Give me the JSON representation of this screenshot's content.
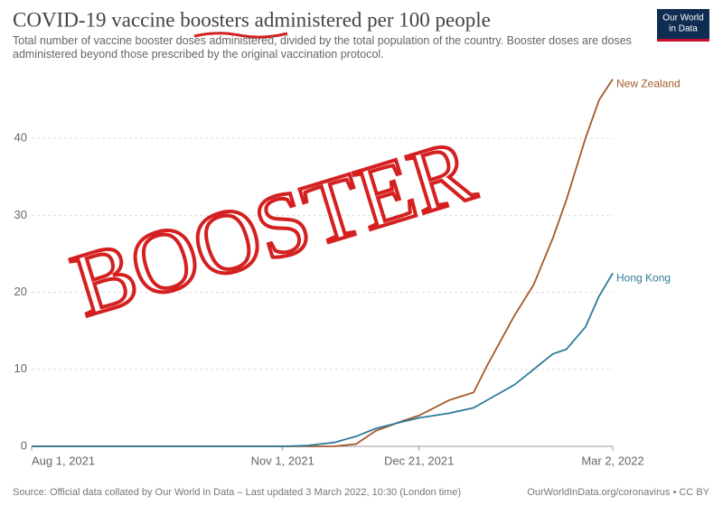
{
  "chart_data": {
    "type": "line",
    "title": "COVID-19 vaccine boosters administered per 100 people",
    "subtitle": "Total number of vaccine booster doses administered, divided by the total population of the country. Booster doses are doses administered beyond those prescribed by the original vaccination protocol.",
    "logo": [
      "Our World",
      "in Data"
    ],
    "annotation": "BOOSTER",
    "source": "Source: Official data collated by Our World in Data – Last updated 3 March 2022, 10:30 (London time)",
    "credit": "OurWorldInData.org/coronavirus • CC BY",
    "x": [
      "2021-08-01",
      "2021-09-01",
      "2021-10-01",
      "2021-11-01",
      "2021-11-10",
      "2021-11-20",
      "2021-11-28",
      "2021-12-05",
      "2021-12-15",
      "2021-12-21",
      "2022-01-01",
      "2022-01-10",
      "2022-01-15",
      "2022-01-25",
      "2022-02-01",
      "2022-02-08",
      "2022-02-13",
      "2022-02-20",
      "2022-02-25",
      "2022-03-02"
    ],
    "series": [
      {
        "name": "New Zealand",
        "color": "#a4592a",
        "values": [
          0,
          0,
          0,
          0,
          0,
          0,
          0.3,
          2.0,
          3.3,
          4.0,
          6.0,
          7.0,
          10.5,
          17,
          21,
          27,
          32,
          40,
          45,
          47.7
        ]
      },
      {
        "name": "Hong Kong",
        "color": "#2c7b9a",
        "values": [
          0,
          0,
          0,
          0,
          0.1,
          0.5,
          1.3,
          2.3,
          3.2,
          3.7,
          4.3,
          5.0,
          6.0,
          8.0,
          10.0,
          12.0,
          12.6,
          15.5,
          19.5,
          22.5
        ]
      }
    ],
    "xlim": [
      "2021-08-01",
      "2022-03-02"
    ],
    "xticks": [
      {
        "value": "2021-08-01",
        "label": "Aug 1, 2021"
      },
      {
        "value": "2021-11-01",
        "label": "Nov 1, 2021"
      },
      {
        "value": "2021-12-21",
        "label": "Dec 21, 2021"
      },
      {
        "value": "2022-03-02",
        "label": "Mar 2, 2022"
      }
    ],
    "ylim": [
      0,
      48
    ],
    "yticks": [
      0,
      10,
      20,
      30,
      40
    ],
    "grid": true
  }
}
